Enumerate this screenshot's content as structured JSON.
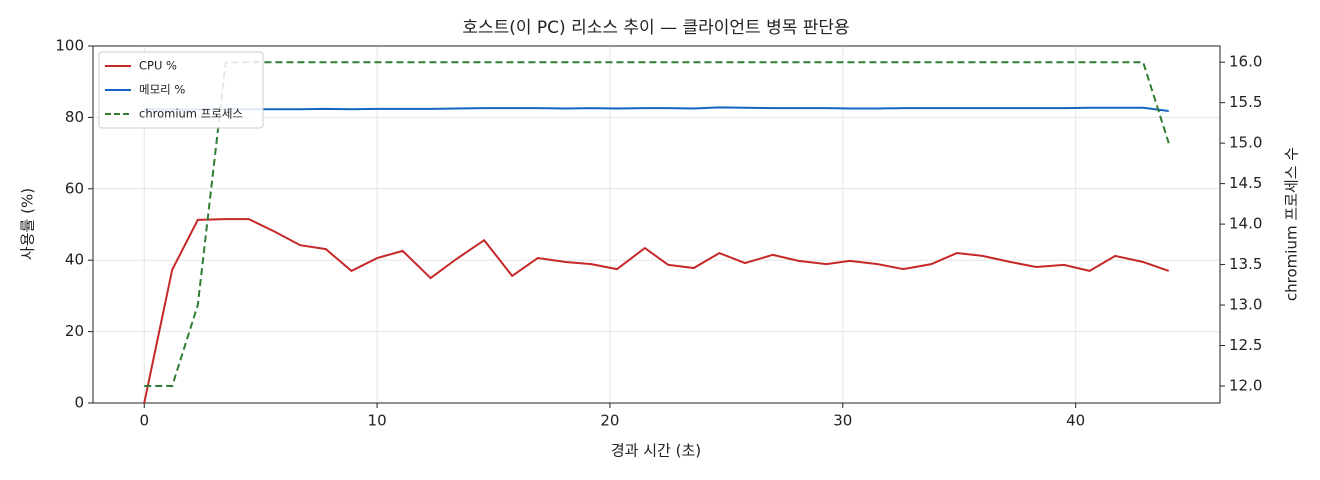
{
  "chart_data": {
    "type": "line",
    "title": "호스트(이 PC) 리소스 추이 — 클라이언트 병목 판단용",
    "x_label": "경과 시간 (초)",
    "y_label": "사용률 (%)",
    "y2_label": "chromium 프로세스 수",
    "x": [
      0,
      1.2,
      2.3,
      3.5,
      4.5,
      5.6,
      6.7,
      7.8,
      8.9,
      10.0,
      11.1,
      12.3,
      13.4,
      14.6,
      15.8,
      16.9,
      18.1,
      19.2,
      20.3,
      21.5,
      22.5,
      23.6,
      24.7,
      25.8,
      27.0,
      28.1,
      29.3,
      30.3,
      31.5,
      32.6,
      33.8,
      34.9,
      36.0,
      37.2,
      38.3,
      39.5,
      40.6,
      41.7,
      42.9,
      44.0
    ],
    "series": [
      {
        "name": "CPU %",
        "color": "#c62828",
        "linestyle": "solid",
        "values": [
          0,
          37.3,
          51.3,
          51.5,
          51.5,
          48,
          44.2,
          43.1,
          37,
          40.6,
          42.6,
          35,
          40.3,
          45.6,
          35.6,
          40.6,
          39.5,
          38.9,
          37.5,
          43.4,
          38.7,
          37.8,
          42,
          39.2,
          41.5,
          39.8,
          38.9,
          39.8,
          38.9,
          37.5,
          38.9,
          42,
          41.2,
          39.5,
          38.1,
          38.7,
          37,
          41.2,
          39.5,
          37
        ]
      },
      {
        "name": "메모리 %",
        "color": "#1565c0",
        "linestyle": "solid",
        "values": [
          82.2,
          82.2,
          82.2,
          82.3,
          82.3,
          82.3,
          82.3,
          82.4,
          82.3,
          82.4,
          82.4,
          82.4,
          82.5,
          82.6,
          82.6,
          82.6,
          82.5,
          82.6,
          82.5,
          82.6,
          82.6,
          82.5,
          82.8,
          82.7,
          82.6,
          82.6,
          82.6,
          82.5,
          82.5,
          82.6,
          82.6,
          82.6,
          82.6,
          82.6,
          82.6,
          82.6,
          82.7,
          82.7,
          82.7,
          81.8
        ]
      },
      {
        "name": "chromium 프로세스",
        "color": "#2e7d32",
        "linestyle": "dashed",
        "axis": "y2",
        "values": [
          12,
          12,
          13,
          16,
          16,
          16,
          16,
          16,
          16,
          16,
          16,
          16,
          16,
          16,
          16,
          16,
          16,
          16,
          16,
          16,
          16,
          16,
          16,
          16,
          16,
          16,
          16,
          16,
          16,
          16,
          16,
          16,
          16,
          16,
          16,
          16,
          16,
          16,
          16,
          15
        ]
      }
    ],
    "xlim": [
      -2.2,
      46.2
    ],
    "xticks": [
      0,
      10,
      20,
      30,
      40
    ],
    "ylim": [
      0,
      100
    ],
    "yticks": [
      0,
      20,
      40,
      60,
      80,
      100
    ],
    "y2lim": [
      11.79,
      16.2
    ],
    "y2ticks": [
      {
        "value": 12,
        "label": "12.0"
      },
      12.5,
      {
        "value": 13,
        "label": "13.0"
      },
      13.5,
      {
        "value": 14,
        "label": "14.0"
      },
      14.5,
      {
        "value": 15,
        "label": "15.0"
      },
      15.5,
      {
        "value": 16,
        "label": "16.0"
      }
    ],
    "grid": true,
    "legend": "upper left"
  }
}
